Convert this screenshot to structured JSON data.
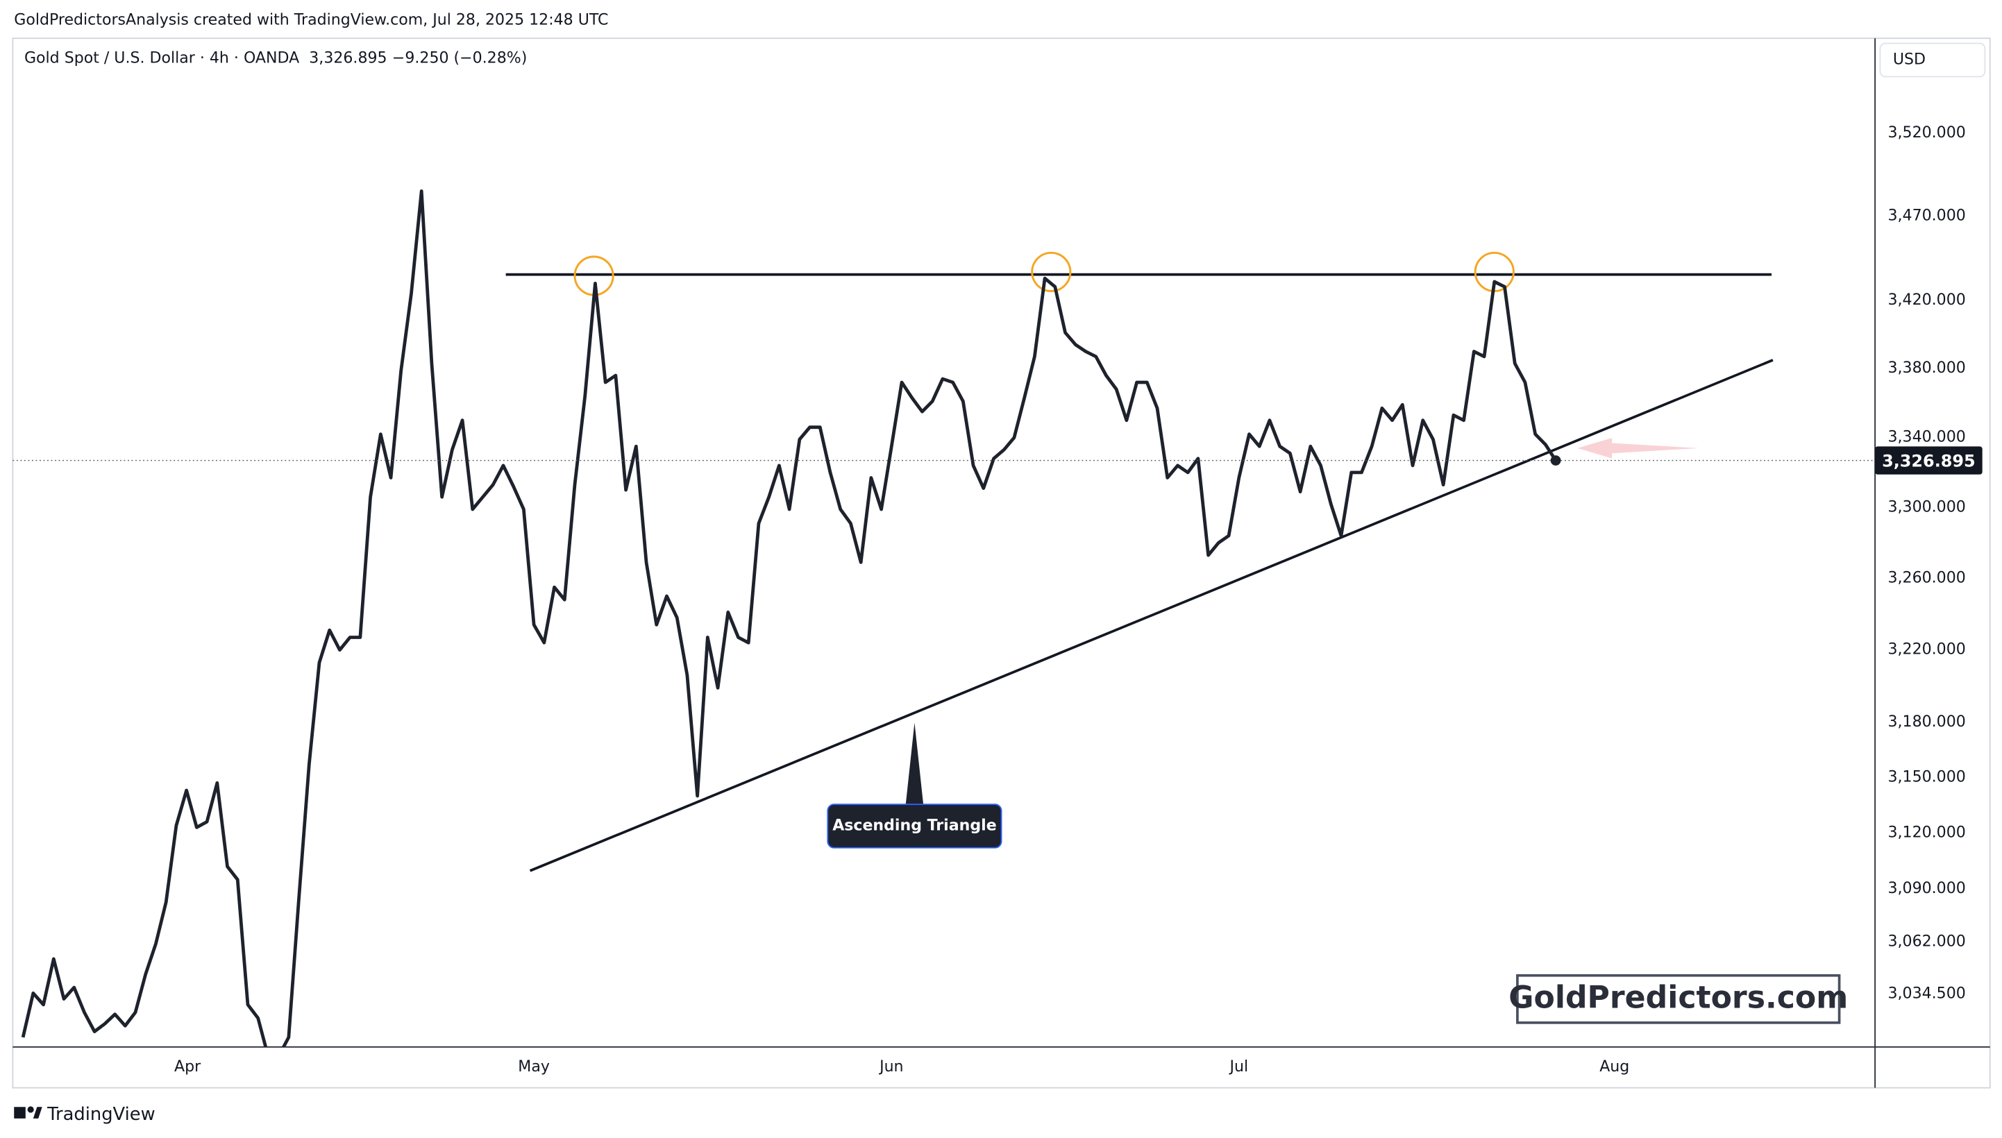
{
  "header": {
    "credit": "GoldPredictorsAnalysis created with TradingView.com, Jul 28, 2025 12:48 UTC",
    "footer": "TradingView",
    "watermark": "GoldPredictors.com"
  },
  "chart_data": {
    "type": "line",
    "title": "Gold Spot / U.S. Dollar · 4h · OANDA",
    "last_label": "3,326.895",
    "change_label": "−9.250 (−0.28%)",
    "currency": "USD",
    "annotation": "Ascending Triangle",
    "color": "#1e222d",
    "log_scale": true,
    "grid": false,
    "values": [
      3012,
      3035,
      3029,
      3053,
      3032,
      3038,
      3025,
      3015,
      3019,
      3024,
      3018,
      3025,
      3045,
      3061,
      3083,
      3124,
      3143,
      3123,
      3126,
      3147,
      3102,
      3095,
      3029,
      3022,
      3002,
      3002,
      3012,
      3085,
      3157,
      3213,
      3231,
      3220,
      3227,
      3227,
      3306,
      3342,
      3317,
      3379,
      3424,
      3485,
      3383,
      3306,
      3333,
      3350,
      3299,
      3306,
      3313,
      3324,
      3312,
      3299,
      3234,
      3224,
      3255,
      3248,
      3313,
      3364,
      3430,
      3372,
      3376,
      3310,
      3335,
      3269,
      3234,
      3250,
      3238,
      3206,
      3140,
      3227,
      3199,
      3241,
      3227,
      3224,
      3291,
      3306,
      3324,
      3299,
      3339,
      3346,
      3346,
      3320,
      3299,
      3291,
      3269,
      3317,
      3299,
      3335,
      3372,
      3363,
      3355,
      3361,
      3374,
      3372,
      3361,
      3324,
      3311,
      3328,
      3333,
      3340,
      3363,
      3387,
      3433,
      3428,
      3401,
      3394,
      3390,
      3387,
      3376,
      3368,
      3350,
      3372,
      3372,
      3357,
      3317,
      3324,
      3320,
      3328,
      3273,
      3280,
      3284,
      3317,
      3342,
      3335,
      3350,
      3335,
      3331,
      3309,
      3335,
      3324,
      3302,
      3284,
      3320,
      3320,
      3335,
      3357,
      3350,
      3359,
      3324,
      3350,
      3339,
      3313,
      3353,
      3350,
      3390,
      3387,
      3431,
      3428,
      3383,
      3372,
      3342,
      3336,
      3326.895
    ],
    "xlim": [
      -1,
      181.25
    ],
    "xticks": [
      {
        "value": 16.1,
        "label": "Apr"
      },
      {
        "value": 50,
        "label": "May"
      },
      {
        "value": 85,
        "label": "Jun"
      },
      {
        "value": 119,
        "label": "Jul"
      },
      {
        "value": 155.75,
        "label": "Aug"
      }
    ],
    "ylim": [
      3007,
      3578
    ],
    "yticks": [
      {
        "value": 3034.5,
        "label": "3,034.500"
      },
      {
        "value": 3062,
        "label": "3,062.000"
      },
      {
        "value": 3090,
        "label": "3,090.000"
      },
      {
        "value": 3120,
        "label": "3,120.000"
      },
      {
        "value": 3150,
        "label": "3,150.000"
      },
      {
        "value": 3180,
        "label": "3,180.000"
      },
      {
        "value": 3220,
        "label": "3,220.000"
      },
      {
        "value": 3260,
        "label": "3,260.000"
      },
      {
        "value": 3300,
        "label": "3,300.000"
      },
      {
        "value": 3340,
        "label": "3,340.000"
      },
      {
        "value": 3380,
        "label": "3,380.000"
      },
      {
        "value": 3420,
        "label": "3,420.000"
      },
      {
        "value": 3470,
        "label": "3,470.000"
      },
      {
        "value": 3520,
        "label": "3,520.000"
      }
    ]
  }
}
